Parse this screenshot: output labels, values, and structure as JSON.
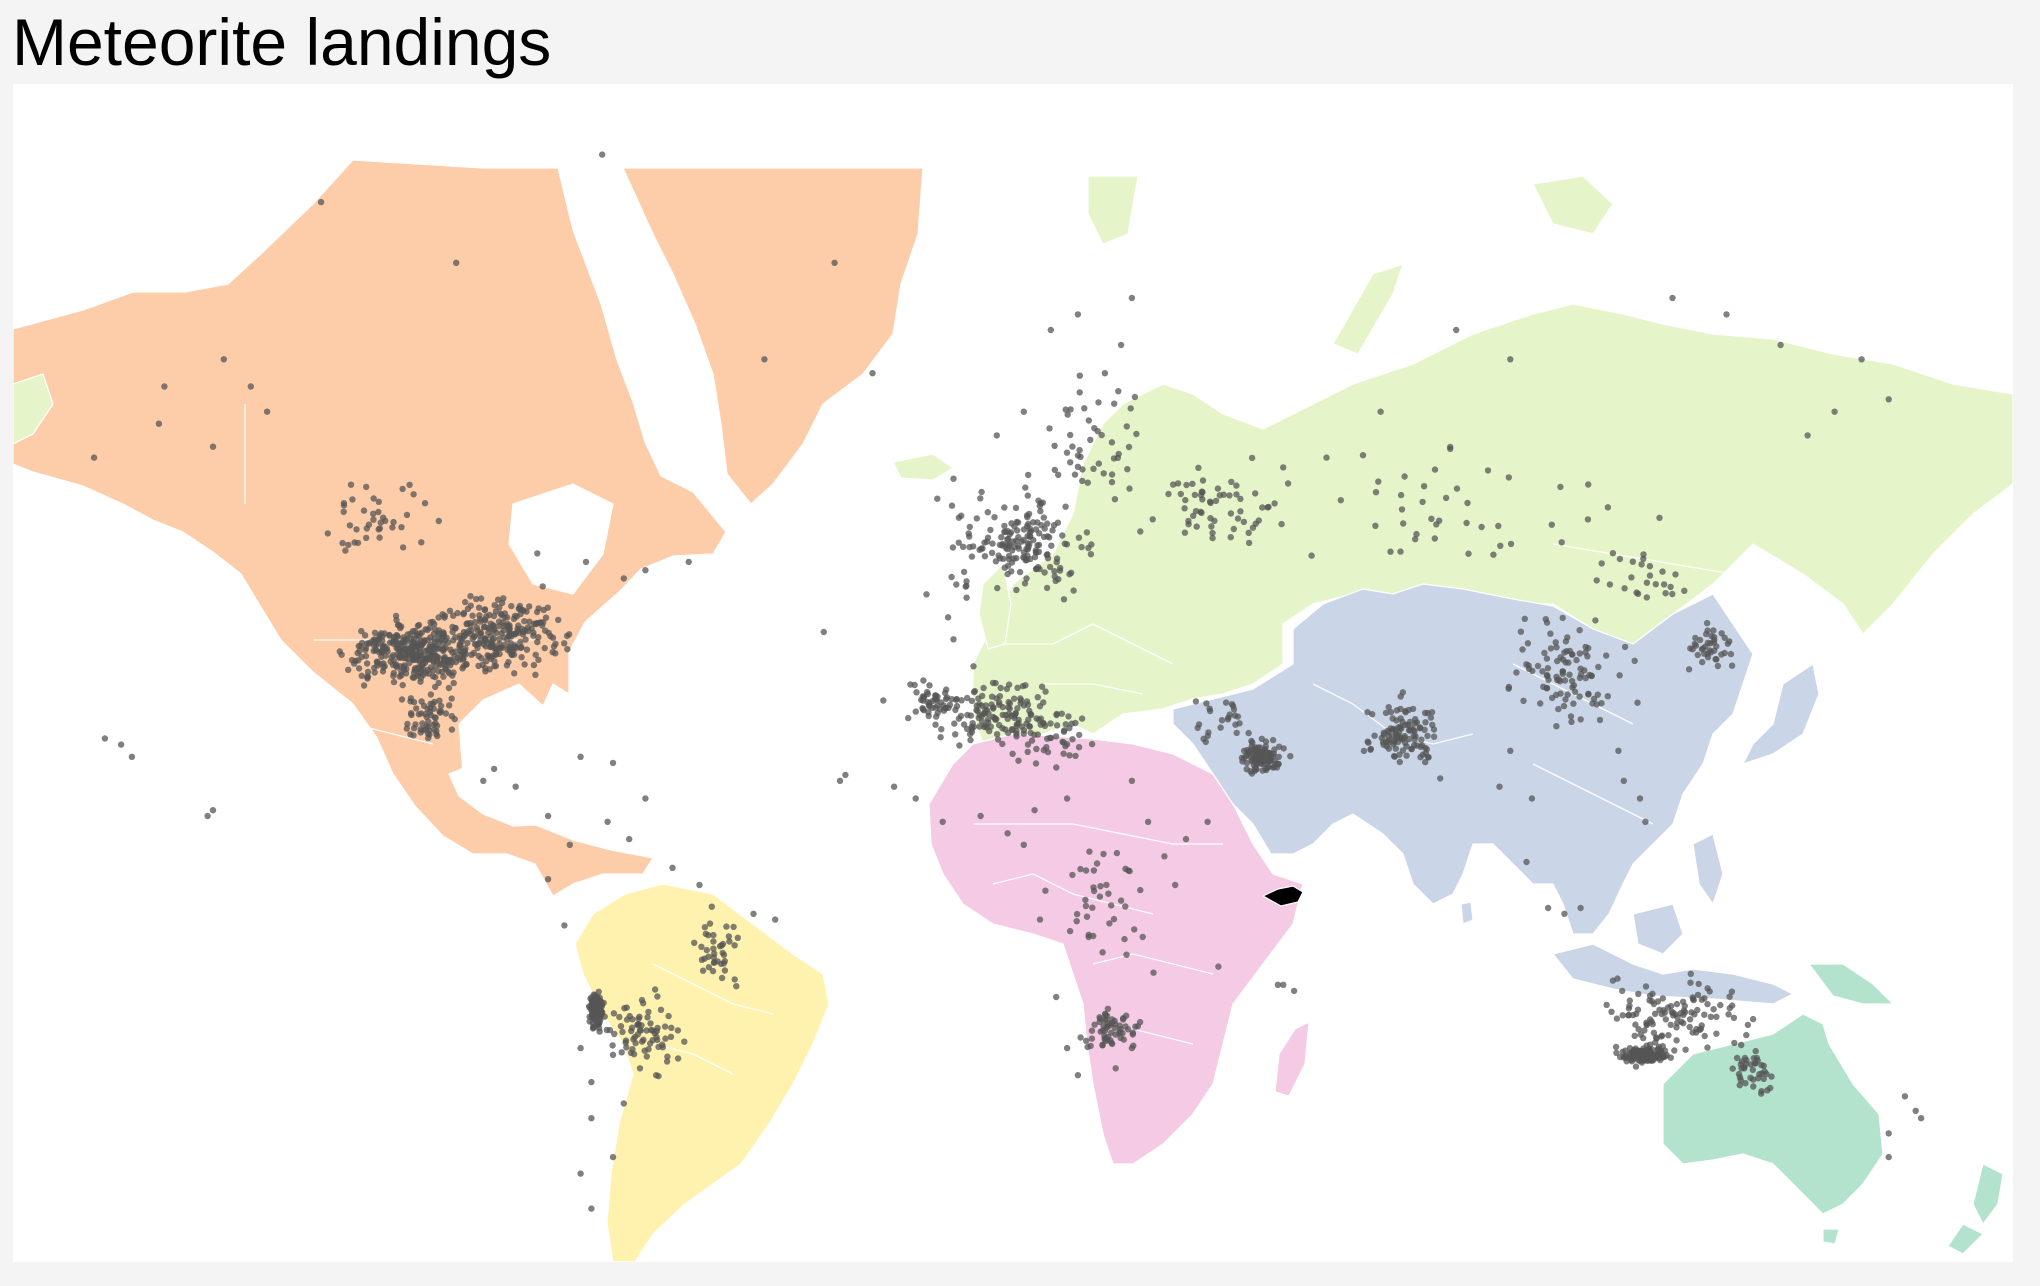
{
  "title": "Meteorite landings",
  "map": {
    "projection": "mercator",
    "ocean_color": "#ffffff",
    "background_color": "#f4f4f4",
    "country_border_color": "#ffffff",
    "highlighted_country": "Somalia",
    "highlight_color": "#000000",
    "region_colors": {
      "north-america": "#fdcca9",
      "south-america": "#fff2ae",
      "europe-russia": "#e6f5c9",
      "africa": "#f4cae4",
      "asia": "#cbd5e8",
      "oceania": "#b3e2cd"
    },
    "point_color": "#555555"
  },
  "chart_data": {
    "type": "scatter",
    "title": "Meteorite landings",
    "projection": "mercator",
    "xlabel": "",
    "ylabel": "",
    "clusters": [
      {
        "lon": -101,
        "lat": 35,
        "spread_lon": 7,
        "spread_lat": 4,
        "count": 220
      },
      {
        "lon": -90,
        "lat": 37,
        "spread_lon": 9,
        "spread_lat": 5,
        "count": 180
      },
      {
        "lon": -109,
        "lat": 35,
        "spread_lon": 6,
        "spread_lat": 4,
        "count": 90
      },
      {
        "lon": -82,
        "lat": 38,
        "spread_lon": 7,
        "spread_lat": 5,
        "count": 80
      },
      {
        "lon": -100,
        "lat": 25,
        "spread_lon": 5,
        "spread_lat": 4,
        "count": 60
      },
      {
        "lon": -110,
        "lat": 52,
        "spread_lon": 9,
        "spread_lat": 4,
        "count": 40
      },
      {
        "lon": 10,
        "lat": 49,
        "spread_lon": 12,
        "spread_lat": 5,
        "count": 170
      },
      {
        "lon": 23,
        "lat": 60,
        "spread_lon": 9,
        "spread_lat": 5,
        "count": 45
      },
      {
        "lon": 45,
        "lat": 53,
        "spread_lon": 15,
        "spread_lat": 4,
        "count": 60
      },
      {
        "lon": 85,
        "lat": 53,
        "spread_lon": 30,
        "spread_lat": 6,
        "count": 45
      },
      {
        "lon": 5,
        "lat": 26,
        "spread_lon": 12,
        "spread_lat": 5,
        "count": 140
      },
      {
        "lon": 15,
        "lat": 22,
        "spread_lon": 8,
        "spread_lat": 5,
        "count": 40
      },
      {
        "lon": -7,
        "lat": 28,
        "spread_lon": 4,
        "spread_lat": 3,
        "count": 45
      },
      {
        "lon": 25,
        "lat": -5,
        "spread_lon": 8,
        "spread_lat": 9,
        "count": 35
      },
      {
        "lon": 26,
        "lat": -27,
        "spread_lon": 5,
        "spread_lat": 3,
        "count": 60
      },
      {
        "lon": 54,
        "lat": 19,
        "spread_lon": 4,
        "spread_lat": 2.5,
        "count": 100
      },
      {
        "lon": 47,
        "lat": 25,
        "spread_lon": 5,
        "spread_lat": 4,
        "count": 25
      },
      {
        "lon": 80,
        "lat": 23,
        "spread_lon": 6,
        "spread_lat": 5,
        "count": 110
      },
      {
        "lon": 110,
        "lat": 32,
        "spread_lon": 9,
        "spread_lat": 7,
        "count": 100
      },
      {
        "lon": 137,
        "lat": 36,
        "spread_lon": 4,
        "spread_lat": 3,
        "count": 40
      },
      {
        "lon": 125,
        "lat": 45,
        "spread_lon": 8,
        "spread_lat": 4,
        "count": 25
      },
      {
        "lon": 125,
        "lat": -31,
        "spread_lon": 4,
        "spread_lat": 1,
        "count": 140
      },
      {
        "lon": 130,
        "lat": -25,
        "spread_lon": 12,
        "spread_lat": 6,
        "count": 120
      },
      {
        "lon": 145,
        "lat": -33,
        "spread_lon": 4,
        "spread_lat": 4,
        "count": 40
      },
      {
        "lon": -69,
        "lat": -24,
        "spread_lon": 1.2,
        "spread_lat": 2.5,
        "count": 130
      },
      {
        "lon": -60,
        "lat": -27,
        "spread_lon": 6,
        "spread_lat": 6,
        "count": 70
      },
      {
        "lon": -47,
        "lat": -15,
        "spread_lon": 5,
        "spread_lat": 6,
        "count": 40
      }
    ],
    "scattered_points": [
      [
        -150,
        61
      ],
      [
        -149,
        64
      ],
      [
        -138,
        66
      ],
      [
        -133,
        64
      ],
      [
        -162,
        58
      ],
      [
        -140,
        59
      ],
      [
        -130,
        62
      ],
      [
        -120,
        75
      ],
      [
        -95,
        72
      ],
      [
        -68,
        77
      ],
      [
        -38,
        66
      ],
      [
        -25,
        72
      ],
      [
        -18,
        65
      ],
      [
        -157,
        21
      ],
      [
        -155,
        19
      ],
      [
        -140,
        10
      ],
      [
        -141,
        9
      ],
      [
        -160,
        22
      ],
      [
        -27,
        38
      ],
      [
        -16,
        28
      ],
      [
        -23,
        16
      ],
      [
        -24,
        15
      ],
      [
        60,
        -21
      ],
      [
        57,
        -20
      ],
      [
        46,
        -17
      ],
      [
        58,
        -20
      ],
      [
        120,
        20
      ],
      [
        121,
        15
      ],
      [
        125,
        8
      ],
      [
        124,
        12
      ],
      [
        103,
        1
      ],
      [
        107,
        -7
      ],
      [
        110,
        -8
      ],
      [
        113,
        -7
      ],
      [
        100,
        20
      ],
      [
        98,
        14
      ],
      [
        104,
        12
      ],
      [
        155,
        60
      ],
      [
        160,
        62
      ],
      [
        170,
        63
      ],
      [
        165,
        66
      ],
      [
        150,
        67
      ],
      [
        140,
        69
      ],
      [
        130,
        70
      ],
      [
        100,
        66
      ],
      [
        90,
        68
      ],
      [
        76,
        62
      ],
      [
        66,
        58
      ],
      [
        170,
        -42
      ],
      [
        175,
        -39
      ],
      [
        173,
        -37
      ],
      [
        170,
        -45
      ],
      [
        176,
        -40
      ],
      [
        -70,
        -40
      ],
      [
        -66,
        -45
      ],
      [
        -70,
        -51
      ],
      [
        -72,
        -47
      ],
      [
        -64,
        -38
      ],
      [
        -58,
        -34
      ],
      [
        -56,
        -32
      ],
      [
        -75,
        -10
      ],
      [
        -78,
        -2
      ],
      [
        -74,
        4
      ],
      [
        -67,
        8
      ],
      [
        -63,
        5
      ],
      [
        -55,
        0
      ],
      [
        -50,
        -3
      ],
      [
        -40,
        -8
      ],
      [
        -36,
        -9
      ],
      [
        -70,
        -35
      ],
      [
        -66,
        -31
      ],
      [
        -61,
        -33
      ],
      [
        -72,
        -30
      ],
      [
        12,
        10
      ],
      [
        18,
        12
      ],
      [
        30,
        15
      ],
      [
        33,
        8
      ],
      [
        36,
        2
      ],
      [
        38,
        -3
      ],
      [
        40,
        5
      ],
      [
        44,
        8
      ],
      [
        32,
        -12
      ],
      [
        34,
        -18
      ],
      [
        29,
        -15
      ],
      [
        22,
        -12
      ],
      [
        16,
        -22
      ],
      [
        18,
        -30
      ],
      [
        20,
        -34
      ],
      [
        27,
        -33
      ],
      [
        30,
        -30
      ],
      [
        -10,
        12
      ],
      [
        -14,
        14
      ],
      [
        -5,
        8
      ],
      [
        2,
        9
      ],
      [
        7,
        6
      ],
      [
        10,
        4
      ],
      [
        14,
        -4
      ],
      [
        13,
        -9
      ],
      [
        -60,
        12
      ],
      [
        -66,
        18
      ],
      [
        -72,
        19
      ],
      [
        -78,
        9
      ],
      [
        -84,
        14
      ],
      [
        -88,
        17
      ],
      [
        -90,
        15
      ],
      [
        -52,
        47
      ],
      [
        -60,
        46
      ],
      [
        -64,
        45
      ],
      [
        -71,
        47
      ],
      [
        -79,
        44
      ],
      [
        -80,
        48
      ],
      [
        -3,
        56
      ],
      [
        -6,
        54
      ],
      [
        -2,
        52
      ],
      [
        0,
        51
      ],
      [
        -8,
        43
      ],
      [
        -4,
        40
      ],
      [
        -3,
        37
      ],
      [
        15,
        68
      ],
      [
        20,
        69
      ],
      [
        25,
        65
      ],
      [
        30,
        70
      ],
      [
        28,
        67
      ],
      [
        5,
        60
      ],
      [
        10,
        62
      ]
    ]
  }
}
